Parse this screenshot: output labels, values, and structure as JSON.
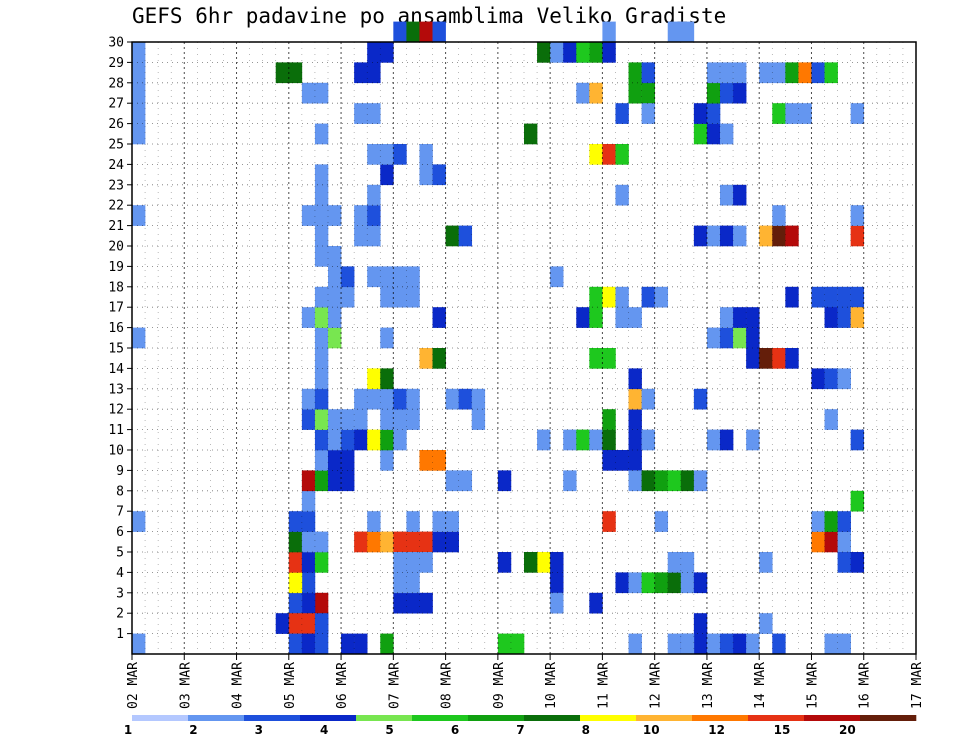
{
  "chart_data": {
    "type": "heatmap",
    "title": "GEFS 6hr padavine po ansamblima Veliko Gradiste",
    "xlabel": "",
    "ylabel": "",
    "x_ticks": [
      "02 MAR",
      "03 MAR",
      "04 MAR",
      "05 MAR",
      "06 MAR",
      "07 MAR",
      "08 MAR",
      "09 MAR",
      "10 MAR",
      "11 MAR",
      "12 MAR",
      "13 MAR",
      "14 MAR",
      "15 MAR",
      "16 MAR",
      "17 MAR"
    ],
    "y_ticks": [
      1,
      2,
      3,
      4,
      5,
      6,
      7,
      8,
      9,
      10,
      11,
      12,
      13,
      14,
      15,
      16,
      17,
      18,
      19,
      20,
      21,
      22,
      23,
      24,
      25,
      26,
      27,
      28,
      29,
      30
    ],
    "x_unit": "6-hour step since 02 MAR 00Z",
    "xlim": [
      0,
      60
    ],
    "ylim": [
      0,
      30
    ],
    "grid": true,
    "legend": {
      "position": "bottom",
      "levels": [
        "1",
        "2",
        "3",
        "4",
        "5",
        "6",
        "7",
        "8",
        "10",
        "12",
        "15",
        "20"
      ],
      "colors": [
        "#b4c8ff",
        "#6496f0",
        "#1e50dc",
        "#0a28c8",
        "#78e650",
        "#1ec81e",
        "#10a010",
        "#0a6e0a",
        "#ffff00",
        "#ffb432",
        "#ff7800",
        "#e63214",
        "#b40a0a",
        "#641e0a"
      ]
    },
    "cells": [
      [
        0,
        0,
        1
      ],
      [
        0,
        6,
        1
      ],
      [
        0,
        21,
        1
      ],
      [
        0,
        25,
        1
      ],
      [
        0,
        26,
        1
      ],
      [
        0,
        27,
        1
      ],
      [
        0,
        28,
        1
      ],
      [
        0,
        29,
        1
      ],
      [
        0,
        15,
        1
      ],
      [
        13,
        1,
        3
      ],
      [
        14,
        1,
        3
      ],
      [
        14,
        2,
        12
      ],
      [
        13,
        2,
        3
      ],
      [
        13,
        3,
        2
      ],
      [
        12,
        2,
        2
      ],
      [
        11,
        1,
        3
      ],
      [
        12,
        1,
        11
      ],
      [
        13,
        1,
        11
      ],
      [
        14,
        1,
        2
      ],
      [
        12,
        0,
        2
      ],
      [
        13,
        0,
        3
      ],
      [
        14,
        0,
        2
      ],
      [
        12,
        3,
        8
      ],
      [
        12,
        4,
        11
      ],
      [
        12,
        5,
        7
      ],
      [
        12,
        6,
        2
      ],
      [
        13,
        4,
        3
      ],
      [
        14,
        4,
        5
      ],
      [
        13,
        5,
        1
      ],
      [
        14,
        5,
        1
      ],
      [
        13,
        6,
        2
      ],
      [
        13,
        7,
        1
      ],
      [
        13,
        8,
        12
      ],
      [
        14,
        8,
        6
      ],
      [
        15,
        8,
        3
      ],
      [
        16,
        8,
        3
      ],
      [
        14,
        9,
        1
      ],
      [
        15,
        9,
        3
      ],
      [
        16,
        9,
        3
      ],
      [
        14,
        10,
        2
      ],
      [
        15,
        10,
        1
      ],
      [
        16,
        10,
        2
      ],
      [
        13,
        11,
        2
      ],
      [
        14,
        11,
        4
      ],
      [
        15,
        11,
        1
      ],
      [
        16,
        11,
        1
      ],
      [
        17,
        11,
        1
      ],
      [
        13,
        12,
        1
      ],
      [
        14,
        12,
        2
      ],
      [
        14,
        13,
        1
      ],
      [
        14,
        14,
        1
      ],
      [
        14,
        15,
        1
      ],
      [
        15,
        15,
        4
      ],
      [
        13,
        16,
        1
      ],
      [
        14,
        16,
        4
      ],
      [
        15,
        16,
        1
      ],
      [
        14,
        17,
        1
      ],
      [
        15,
        17,
        1
      ],
      [
        16,
        17,
        1
      ],
      [
        15,
        18,
        1
      ],
      [
        16,
        18,
        2
      ],
      [
        14,
        19,
        1
      ],
      [
        15,
        19,
        1
      ],
      [
        14,
        20,
        1
      ],
      [
        13,
        21,
        1
      ],
      [
        14,
        21,
        1
      ],
      [
        15,
        21,
        1
      ],
      [
        14,
        22,
        1
      ],
      [
        14,
        23,
        1
      ],
      [
        14,
        25,
        1
      ],
      [
        13,
        27,
        1
      ],
      [
        14,
        27,
        1
      ],
      [
        11,
        28,
        7
      ],
      [
        12,
        28,
        7
      ],
      [
        16,
        0,
        3
      ],
      [
        17,
        0,
        3
      ],
      [
        17,
        5,
        11
      ],
      [
        18,
        5,
        10
      ],
      [
        19,
        5,
        9
      ],
      [
        20,
        5,
        11
      ],
      [
        21,
        5,
        11
      ],
      [
        22,
        5,
        11
      ],
      [
        18,
        6,
        1
      ],
      [
        21,
        6,
        1
      ],
      [
        19,
        9,
        1
      ],
      [
        22,
        9,
        10
      ],
      [
        23,
        9,
        10
      ],
      [
        17,
        10,
        3
      ],
      [
        18,
        10,
        8
      ],
      [
        19,
        10,
        6
      ],
      [
        20,
        10,
        1
      ],
      [
        19,
        11,
        1
      ],
      [
        20,
        11,
        1
      ],
      [
        21,
        11,
        1
      ],
      [
        17,
        12,
        1
      ],
      [
        18,
        12,
        1
      ],
      [
        19,
        12,
        1
      ],
      [
        20,
        12,
        2
      ],
      [
        21,
        12,
        1
      ],
      [
        18,
        13,
        8
      ],
      [
        19,
        13,
        7
      ],
      [
        19,
        15,
        1
      ],
      [
        19,
        17,
        1
      ],
      [
        20,
        17,
        1
      ],
      [
        21,
        17,
        1
      ],
      [
        18,
        18,
        1
      ],
      [
        19,
        18,
        1
      ],
      [
        20,
        18,
        1
      ],
      [
        21,
        18,
        1
      ],
      [
        17,
        20,
        1
      ],
      [
        18,
        20,
        1
      ],
      [
        17,
        21,
        1
      ],
      [
        18,
        21,
        2
      ],
      [
        19,
        23,
        3
      ],
      [
        18,
        22,
        1
      ],
      [
        18,
        24,
        1
      ],
      [
        19,
        24,
        1
      ],
      [
        20,
        24,
        2
      ],
      [
        17,
        26,
        1
      ],
      [
        18,
        26,
        1
      ],
      [
        17,
        28,
        3
      ],
      [
        18,
        28,
        3
      ],
      [
        18,
        29,
        3
      ],
      [
        19,
        29,
        3
      ],
      [
        20,
        30,
        2
      ],
      [
        21,
        30,
        7
      ],
      [
        22,
        30,
        12
      ],
      [
        23,
        30,
        2
      ],
      [
        20,
        4,
        1
      ],
      [
        21,
        4,
        1
      ],
      [
        22,
        4,
        1
      ],
      [
        20,
        2,
        3
      ],
      [
        21,
        2,
        3
      ],
      [
        22,
        2,
        3
      ],
      [
        20,
        3,
        1
      ],
      [
        21,
        3,
        1
      ],
      [
        19,
        0,
        6
      ],
      [
        23,
        5,
        3
      ],
      [
        24,
        5,
        3
      ],
      [
        23,
        6,
        1
      ],
      [
        24,
        6,
        1
      ],
      [
        24,
        8,
        1
      ],
      [
        25,
        8,
        1
      ],
      [
        24,
        12,
        1
      ],
      [
        25,
        12,
        2
      ],
      [
        26,
        12,
        1
      ],
      [
        26,
        11,
        1
      ],
      [
        23,
        16,
        3
      ],
      [
        24,
        20,
        7
      ],
      [
        25,
        20,
        2
      ],
      [
        22,
        23,
        1
      ],
      [
        23,
        23,
        2
      ],
      [
        22,
        24,
        1
      ],
      [
        22,
        14,
        9
      ],
      [
        23,
        14,
        7
      ],
      [
        28,
        0,
        5
      ],
      [
        29,
        0,
        5
      ],
      [
        28,
        4,
        3
      ],
      [
        28,
        8,
        3
      ],
      [
        31,
        4,
        8
      ],
      [
        32,
        4,
        3
      ],
      [
        32,
        3,
        3
      ],
      [
        32,
        2,
        1
      ],
      [
        30,
        4,
        7
      ],
      [
        31,
        10,
        1
      ],
      [
        33,
        10,
        1
      ],
      [
        34,
        10,
        5
      ],
      [
        35,
        10,
        1
      ],
      [
        36,
        10,
        7
      ],
      [
        38,
        10,
        3
      ],
      [
        36,
        11,
        6
      ],
      [
        38,
        11,
        3
      ],
      [
        36,
        9,
        3
      ],
      [
        37,
        9,
        3
      ],
      [
        38,
        9,
        3
      ],
      [
        33,
        8,
        1
      ],
      [
        35,
        2,
        3
      ],
      [
        32,
        18,
        1
      ],
      [
        34,
        16,
        3
      ],
      [
        35,
        16,
        5
      ],
      [
        37,
        16,
        1
      ],
      [
        35,
        17,
        5
      ],
      [
        36,
        17,
        8
      ],
      [
        37,
        17,
        1
      ],
      [
        35,
        14,
        5
      ],
      [
        36,
        14,
        5
      ],
      [
        35,
        24,
        8
      ],
      [
        36,
        24,
        11
      ],
      [
        37,
        24,
        5
      ],
      [
        34,
        27,
        1
      ],
      [
        35,
        27,
        9
      ],
      [
        34,
        29,
        1
      ],
      [
        35,
        29,
        6
      ],
      [
        36,
        29,
        3
      ],
      [
        31,
        29,
        7
      ],
      [
        32,
        29,
        1
      ],
      [
        33,
        29,
        3
      ],
      [
        34,
        29,
        5
      ],
      [
        30,
        25,
        7
      ],
      [
        36,
        6,
        11
      ],
      [
        37,
        3,
        3
      ],
      [
        38,
        3,
        1
      ],
      [
        39,
        3,
        5
      ],
      [
        40,
        3,
        6
      ],
      [
        41,
        3,
        7
      ],
      [
        42,
        3,
        1
      ],
      [
        38,
        8,
        1
      ],
      [
        39,
        8,
        7
      ],
      [
        40,
        8,
        6
      ],
      [
        41,
        8,
        5
      ],
      [
        42,
        8,
        7
      ],
      [
        43,
        8,
        1
      ],
      [
        38,
        12,
        9
      ],
      [
        39,
        12,
        1
      ],
      [
        38,
        13,
        3
      ],
      [
        37,
        16,
        1
      ],
      [
        38,
        16,
        1
      ],
      [
        39,
        17,
        2
      ],
      [
        40,
        17,
        1
      ],
      [
        38,
        0,
        1
      ],
      [
        41,
        0,
        1
      ],
      [
        42,
        0,
        1
      ],
      [
        42,
        0,
        2
      ],
      [
        43,
        0,
        3
      ],
      [
        44,
        0,
        1
      ],
      [
        45,
        0,
        2
      ],
      [
        46,
        0,
        3
      ],
      [
        47,
        0,
        1
      ],
      [
        49,
        0,
        2
      ],
      [
        42,
        0,
        1
      ],
      [
        41,
        4,
        1
      ],
      [
        42,
        4,
        1
      ],
      [
        40,
        6,
        1
      ],
      [
        39,
        10,
        1
      ],
      [
        37,
        22,
        1
      ],
      [
        37,
        26,
        2
      ],
      [
        38,
        27,
        6
      ],
      [
        39,
        27,
        6
      ],
      [
        38,
        28,
        6
      ],
      [
        39,
        28,
        2
      ],
      [
        36,
        30,
        1
      ],
      [
        41,
        30,
        1
      ],
      [
        42,
        30,
        1
      ],
      [
        39,
        26,
        1
      ],
      [
        43,
        12,
        2
      ],
      [
        44,
        15,
        1
      ],
      [
        45,
        15,
        2
      ],
      [
        46,
        15,
        4
      ],
      [
        47,
        15,
        3
      ],
      [
        45,
        16,
        1
      ],
      [
        46,
        16,
        3
      ],
      [
        47,
        16,
        3
      ],
      [
        47,
        14,
        3
      ],
      [
        48,
        14,
        13
      ],
      [
        49,
        14,
        11
      ],
      [
        50,
        14,
        3
      ],
      [
        44,
        10,
        1
      ],
      [
        45,
        10,
        3
      ],
      [
        47,
        10,
        1
      ],
      [
        43,
        20,
        3
      ],
      [
        44,
        20,
        1
      ],
      [
        45,
        20,
        3
      ],
      [
        45,
        22,
        1
      ],
      [
        46,
        22,
        3
      ],
      [
        46,
        20,
        1
      ],
      [
        48,
        20,
        9
      ],
      [
        49,
        20,
        13
      ],
      [
        50,
        20,
        12
      ],
      [
        49,
        21,
        1
      ],
      [
        43,
        25,
        5
      ],
      [
        44,
        25,
        3
      ],
      [
        45,
        25,
        1
      ],
      [
        43,
        26,
        3
      ],
      [
        44,
        26,
        2
      ],
      [
        44,
        27,
        6
      ],
      [
        45,
        27,
        2
      ],
      [
        46,
        27,
        3
      ],
      [
        44,
        28,
        1
      ],
      [
        45,
        28,
        1
      ],
      [
        46,
        28,
        1
      ],
      [
        48,
        28,
        1
      ],
      [
        49,
        28,
        1
      ],
      [
        50,
        28,
        6
      ],
      [
        51,
        28,
        10
      ],
      [
        52,
        28,
        2
      ],
      [
        53,
        28,
        5
      ],
      [
        49,
        26,
        5
      ],
      [
        50,
        26,
        1
      ],
      [
        51,
        26,
        1
      ],
      [
        50,
        17,
        3
      ],
      [
        52,
        17,
        2
      ],
      [
        53,
        17,
        2
      ],
      [
        54,
        17,
        2
      ],
      [
        55,
        17,
        2
      ],
      [
        53,
        16,
        3
      ],
      [
        54,
        16,
        2
      ],
      [
        55,
        16,
        9
      ],
      [
        52,
        13,
        3
      ],
      [
        53,
        13,
        2
      ],
      [
        54,
        13,
        1
      ],
      [
        53,
        11,
        1
      ],
      [
        55,
        10,
        2
      ],
      [
        52,
        5,
        10
      ],
      [
        53,
        5,
        12
      ],
      [
        54,
        5,
        1
      ],
      [
        52,
        6,
        1
      ],
      [
        53,
        6,
        6
      ],
      [
        54,
        6,
        2
      ],
      [
        55,
        7,
        5
      ],
      [
        54,
        4,
        2
      ],
      [
        55,
        4,
        3
      ],
      [
        53,
        0,
        1
      ],
      [
        54,
        0,
        1
      ],
      [
        48,
        1,
        1
      ],
      [
        48,
        4,
        1
      ],
      [
        55,
        20,
        11
      ],
      [
        55,
        21,
        1
      ],
      [
        55,
        26,
        1
      ],
      [
        43,
        3,
        3
      ],
      [
        43,
        1,
        3
      ]
    ]
  }
}
